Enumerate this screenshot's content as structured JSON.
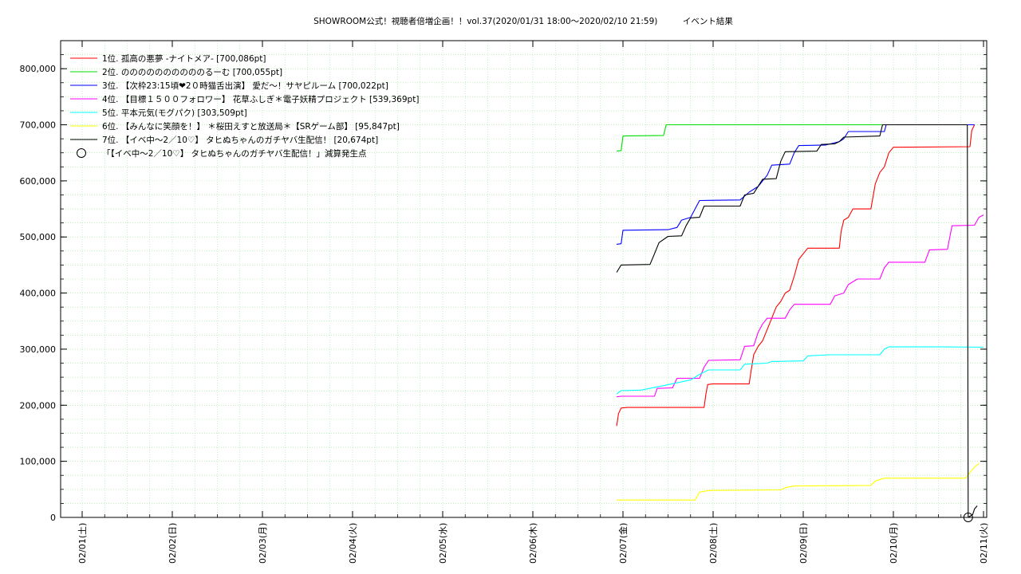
{
  "chart_data": {
    "type": "line",
    "title": "SHOWROOM公式！視聴者倍増企画！！vol.37(2020/01/31 18:00〜2020/02/10 21:59)　　　イベント結果",
    "xlabel": "",
    "ylabel": "",
    "x_unit": "days since 2020-02-01 00:00",
    "xlim": [
      0,
      10
    ],
    "ylim": [
      0,
      850000
    ],
    "grid": true,
    "legend_position": "top-left",
    "x_ticks": [
      "02/01(土)",
      "02/02(日)",
      "02/03(月)",
      "02/04(火)",
      "02/05(水)",
      "02/06(木)",
      "02/07(金)",
      "02/08(土)",
      "02/09(日)",
      "02/10(月)",
      "02/11(火)"
    ],
    "y_ticks": [
      "0",
      "100,000",
      "200,000",
      "300,000",
      "400,000",
      "500,000",
      "600,000",
      "700,000",
      "800,000"
    ],
    "y_tick_values": [
      0,
      100000,
      200000,
      300000,
      400000,
      500000,
      600000,
      700000,
      800000
    ],
    "series": [
      {
        "name": "1位. 孤高の悪夢 -ナイトメア- [700,086pt]",
        "color": "#ff0000",
        "points": [
          [
            5.93,
            163000
          ],
          [
            5.95,
            185000
          ],
          [
            5.98,
            195000
          ],
          [
            6.05,
            196000
          ],
          [
            6.5,
            196000
          ],
          [
            6.9,
            196000
          ],
          [
            6.92,
            220000
          ],
          [
            6.94,
            237000
          ],
          [
            7.0,
            238000
          ],
          [
            7.4,
            238000
          ],
          [
            7.42,
            260000
          ],
          [
            7.45,
            290000
          ],
          [
            7.5,
            305000
          ],
          [
            7.55,
            315000
          ],
          [
            7.6,
            335000
          ],
          [
            7.65,
            355000
          ],
          [
            7.7,
            375000
          ],
          [
            7.75,
            385000
          ],
          [
            7.8,
            400000
          ],
          [
            7.85,
            405000
          ],
          [
            7.9,
            430000
          ],
          [
            7.95,
            460000
          ],
          [
            8.0,
            470000
          ],
          [
            8.05,
            480000
          ],
          [
            8.4,
            480000
          ],
          [
            8.42,
            510000
          ],
          [
            8.45,
            530000
          ],
          [
            8.5,
            535000
          ],
          [
            8.55,
            550000
          ],
          [
            8.75,
            550000
          ],
          [
            8.8,
            595000
          ],
          [
            8.85,
            615000
          ],
          [
            8.9,
            625000
          ],
          [
            8.95,
            650000
          ],
          [
            9.0,
            660000
          ],
          [
            9.85,
            661000
          ],
          [
            9.87,
            690000
          ],
          [
            9.9,
            700086
          ]
        ]
      },
      {
        "name": "2位. ののののののののののるーむ [700,055pt]",
        "color": "#00dd00",
        "points": [
          [
            5.93,
            653000
          ],
          [
            5.98,
            654000
          ],
          [
            6.0,
            680000
          ],
          [
            6.45,
            681000
          ],
          [
            6.48,
            700000
          ],
          [
            9.9,
            700055
          ]
        ]
      },
      {
        "name": "3位. 【次枠23:15頃❤2０時猫舌出演】 愛だ〜！サヤピルーム [700,022pt]",
        "color": "#0000ff",
        "points": [
          [
            5.93,
            487000
          ],
          [
            5.98,
            488000
          ],
          [
            6.0,
            512000
          ],
          [
            6.5,
            513000
          ],
          [
            6.6,
            517000
          ],
          [
            6.65,
            530000
          ],
          [
            6.75,
            535000
          ],
          [
            6.85,
            565000
          ],
          [
            7.3,
            566000
          ],
          [
            7.4,
            580000
          ],
          [
            7.5,
            590000
          ],
          [
            7.6,
            610000
          ],
          [
            7.65,
            628000
          ],
          [
            7.85,
            630000
          ],
          [
            7.9,
            650000
          ],
          [
            7.95,
            663000
          ],
          [
            8.25,
            664000
          ],
          [
            8.4,
            670000
          ],
          [
            8.45,
            675000
          ],
          [
            8.5,
            688000
          ],
          [
            8.9,
            688000
          ],
          [
            8.92,
            700000
          ],
          [
            9.9,
            700022
          ]
        ]
      },
      {
        "name": "4位. 【目標１５００フォロワー】 花草ふしぎ＊電子妖精プロジェクト [539,369pt]",
        "color": "#ff00ff",
        "points": [
          [
            5.93,
            215000
          ],
          [
            5.98,
            216000
          ],
          [
            6.35,
            216000
          ],
          [
            6.38,
            230000
          ],
          [
            6.55,
            231000
          ],
          [
            6.6,
            248000
          ],
          [
            6.85,
            248000
          ],
          [
            6.9,
            268000
          ],
          [
            6.95,
            280000
          ],
          [
            7.3,
            281000
          ],
          [
            7.35,
            305000
          ],
          [
            7.45,
            306000
          ],
          [
            7.5,
            330000
          ],
          [
            7.55,
            345000
          ],
          [
            7.6,
            355000
          ],
          [
            7.8,
            355000
          ],
          [
            7.85,
            370000
          ],
          [
            7.9,
            380000
          ],
          [
            8.3,
            380000
          ],
          [
            8.35,
            395000
          ],
          [
            8.45,
            400000
          ],
          [
            8.5,
            415000
          ],
          [
            8.6,
            425000
          ],
          [
            8.85,
            425000
          ],
          [
            8.9,
            445000
          ],
          [
            8.95,
            455000
          ],
          [
            9.35,
            455000
          ],
          [
            9.4,
            477000
          ],
          [
            9.6,
            478000
          ],
          [
            9.65,
            520000
          ],
          [
            9.9,
            521000
          ],
          [
            9.95,
            535000
          ],
          [
            10.0,
            539369
          ]
        ]
      },
      {
        "name": "5位. 平本元気(モグパク) [303,509pt]",
        "color": "#00ffff",
        "points": [
          [
            5.93,
            220000
          ],
          [
            5.98,
            226000
          ],
          [
            6.2,
            227000
          ],
          [
            6.45,
            235000
          ],
          [
            6.75,
            245000
          ],
          [
            6.85,
            255000
          ],
          [
            6.95,
            263000
          ],
          [
            7.3,
            263000
          ],
          [
            7.35,
            273000
          ],
          [
            7.6,
            275000
          ],
          [
            7.65,
            278000
          ],
          [
            8.0,
            279000
          ],
          [
            8.05,
            288000
          ],
          [
            8.3,
            290000
          ],
          [
            8.85,
            290000
          ],
          [
            8.9,
            300000
          ],
          [
            8.95,
            304000
          ],
          [
            9.5,
            304000
          ],
          [
            10.0,
            303509
          ]
        ]
      },
      {
        "name": "6位. 【みんなに笑顔を！】 ＊桜田えすと放送局＊【SRゲーム部】 [95,847pt]",
        "color": "#ffff00",
        "points": [
          [
            5.93,
            31000
          ],
          [
            6.8,
            31000
          ],
          [
            6.85,
            45000
          ],
          [
            6.95,
            48000
          ],
          [
            7.75,
            49000
          ],
          [
            7.8,
            53000
          ],
          [
            7.9,
            56000
          ],
          [
            8.75,
            57000
          ],
          [
            8.8,
            65000
          ],
          [
            8.9,
            70000
          ],
          [
            9.8,
            70000
          ],
          [
            9.85,
            80000
          ],
          [
            9.9,
            90000
          ],
          [
            9.95,
            95847
          ]
        ]
      },
      {
        "name": "7位. 【イベ中〜2／10♡】 タヒぬちゃんのガチヤバ生配信！ [20,674pt]",
        "color": "#000000",
        "points": [
          [
            5.93,
            437000
          ],
          [
            5.98,
            450000
          ],
          [
            6.3,
            451000
          ],
          [
            6.35,
            470000
          ],
          [
            6.4,
            490000
          ],
          [
            6.5,
            501000
          ],
          [
            6.65,
            502000
          ],
          [
            6.7,
            520000
          ],
          [
            6.75,
            534000
          ],
          [
            6.85,
            535000
          ],
          [
            6.9,
            555000
          ],
          [
            7.3,
            555000
          ],
          [
            7.35,
            575000
          ],
          [
            7.45,
            578000
          ],
          [
            7.55,
            603000
          ],
          [
            7.7,
            604000
          ],
          [
            7.75,
            635000
          ],
          [
            7.8,
            652000
          ],
          [
            8.15,
            653000
          ],
          [
            8.2,
            665000
          ],
          [
            8.35,
            666000
          ],
          [
            8.4,
            670000
          ],
          [
            8.45,
            678000
          ],
          [
            8.85,
            680000
          ],
          [
            8.88,
            700000
          ],
          [
            9.82,
            700000
          ],
          [
            9.83,
            0
          ],
          [
            9.88,
            5000
          ],
          [
            9.9,
            15000
          ],
          [
            9.93,
            20674
          ]
        ]
      }
    ],
    "markers": [
      {
        "name": "「【イベ中〜2／10♡】 タヒぬちゃんのガチヤバ生配信！」減算発生点",
        "x": 9.83,
        "y": 0
      }
    ]
  }
}
